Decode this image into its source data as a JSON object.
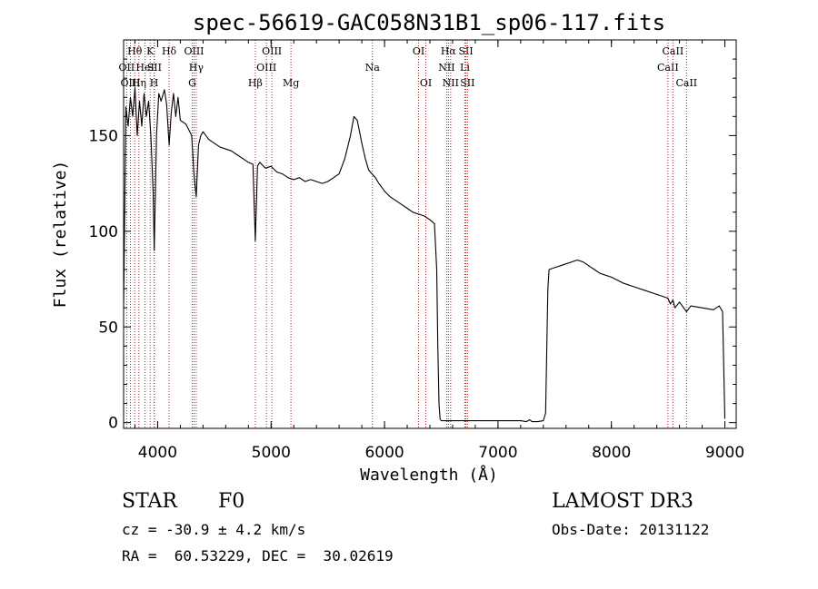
{
  "chart_data": {
    "type": "line",
    "title": "spec-56619-GAC058N31B1_sp06-117.fits",
    "xlabel": "Wavelength (Å)",
    "ylabel": "Flux (relative)",
    "xlim": [
      3700,
      9100
    ],
    "ylim": [
      -3,
      200
    ],
    "xticks": [
      4000,
      5000,
      6000,
      7000,
      8000,
      9000
    ],
    "yticks": [
      0,
      50,
      100,
      150
    ],
    "series": [
      {
        "name": "flux",
        "x": [
          3700,
          3720,
          3740,
          3760,
          3780,
          3800,
          3820,
          3840,
          3860,
          3880,
          3900,
          3920,
          3940,
          3960,
          3970,
          3990,
          4010,
          4030,
          4060,
          4080,
          4101,
          4120,
          4140,
          4160,
          4180,
          4200,
          4250,
          4300,
          4320,
          4340,
          4360,
          4380,
          4400,
          4450,
          4500,
          4550,
          4600,
          4650,
          4700,
          4750,
          4800,
          4840,
          4861,
          4880,
          4900,
          4950,
          5000,
          5050,
          5100,
          5150,
          5200,
          5250,
          5300,
          5350,
          5400,
          5450,
          5500,
          5550,
          5600,
          5650,
          5700,
          5730,
          5760,
          5780,
          5800,
          5830,
          5860,
          5890,
          5920,
          5950,
          6000,
          6050,
          6100,
          6150,
          6200,
          6250,
          6300,
          6350,
          6400,
          6420,
          6440,
          6460,
          6470,
          6480,
          6490,
          6500,
          6550,
          6600,
          6700,
          6800,
          6900,
          7000,
          7100,
          7200,
          7250,
          7280,
          7300,
          7350,
          7400,
          7420,
          7440,
          7450,
          7500,
          7550,
          7600,
          7650,
          7700,
          7750,
          7800,
          7850,
          7900,
          8000,
          8100,
          8200,
          8300,
          8400,
          8450,
          8498,
          8520,
          8542,
          8560,
          8600,
          8662,
          8700,
          8800,
          8900,
          8950,
          8980,
          9000
        ],
        "y": [
          60,
          165,
          155,
          170,
          160,
          175,
          150,
          168,
          155,
          172,
          160,
          168,
          150,
          120,
          90,
          150,
          172,
          168,
          174,
          166,
          145,
          162,
          172,
          160,
          170,
          158,
          156,
          150,
          130,
          118,
          145,
          150,
          152,
          148,
          146,
          144,
          143,
          142,
          140,
          138,
          136,
          135,
          95,
          134,
          136,
          133,
          134,
          131,
          130,
          128,
          127,
          128,
          126,
          127,
          126,
          125,
          126,
          128,
          130,
          138,
          150,
          160,
          158,
          152,
          146,
          138,
          132,
          130,
          128,
          125,
          121,
          118,
          116,
          114,
          112,
          110,
          109,
          108,
          106,
          105,
          104,
          80,
          40,
          10,
          2,
          1,
          1,
          1,
          1,
          1,
          1,
          1,
          1,
          1,
          0.5,
          1.5,
          0.5,
          0.5,
          1,
          5,
          70,
          80,
          81,
          82,
          83,
          84,
          85,
          84,
          82,
          80,
          78,
          76,
          73,
          71,
          69,
          67,
          66,
          65,
          62,
          64,
          60,
          63,
          58,
          61,
          60,
          59,
          61,
          58,
          2
        ]
      }
    ],
    "line_markers": [
      {
        "label": "Hθ",
        "x": 3798,
        "row": 1
      },
      {
        "label": "OII",
        "x": 3727,
        "row": 2
      },
      {
        "label": "OIII",
        "x": 3760,
        "row": 3
      },
      {
        "label": "Hη",
        "x": 3835,
        "row": 3
      },
      {
        "label": "HeI",
        "x": 3889,
        "row": 2
      },
      {
        "label": "K",
        "x": 3934,
        "row": 1
      },
      {
        "label": "SII",
        "x": 3971,
        "row": 2
      },
      {
        "label": "H",
        "x": 3969,
        "row": 3
      },
      {
        "label": "Hδ",
        "x": 4101,
        "row": 1
      },
      {
        "label": "OIII",
        "x": 4321,
        "row": 1
      },
      {
        "label": "Hγ",
        "x": 4340,
        "row": 2
      },
      {
        "label": "G",
        "x": 4305,
        "row": 3
      },
      {
        "label": "Hβ",
        "x": 4861,
        "row": 3
      },
      {
        "label": "OIII",
        "x": 4959,
        "row": 2
      },
      {
        "label": "OIII",
        "x": 5007,
        "row": 1
      },
      {
        "label": "Mg",
        "x": 5175,
        "row": 3
      },
      {
        "label": "Na",
        "x": 5893,
        "row": 2
      },
      {
        "label": "OI",
        "x": 6300,
        "row": 1
      },
      {
        "label": "OI",
        "x": 6364,
        "row": 3
      },
      {
        "label": "NII",
        "x": 6548,
        "row": 2
      },
      {
        "label": "Hα",
        "x": 6563,
        "row": 1
      },
      {
        "label": "NII",
        "x": 6583,
        "row": 3
      },
      {
        "label": "Li",
        "x": 6708,
        "row": 2
      },
      {
        "label": "SII",
        "x": 6717,
        "row": 1
      },
      {
        "label": "SII",
        "x": 6731,
        "row": 3
      },
      {
        "label": "CaII",
        "x": 8498,
        "row": 2
      },
      {
        "label": "CaII",
        "x": 8542,
        "row": 1
      },
      {
        "label": "CaII",
        "x": 8662,
        "row": 3
      }
    ]
  },
  "info": {
    "object_class": "STAR",
    "subclass": "F0",
    "survey": "LAMOST DR3",
    "cz": "cz = -30.9 ± 4.2 km/s",
    "obs_date": "Obs-Date: 20131122",
    "coords": "RA =  60.53229, DEC =  30.02619"
  },
  "colors": {
    "line": "#000000",
    "marker": "#b22222",
    "axis": "#000000"
  }
}
